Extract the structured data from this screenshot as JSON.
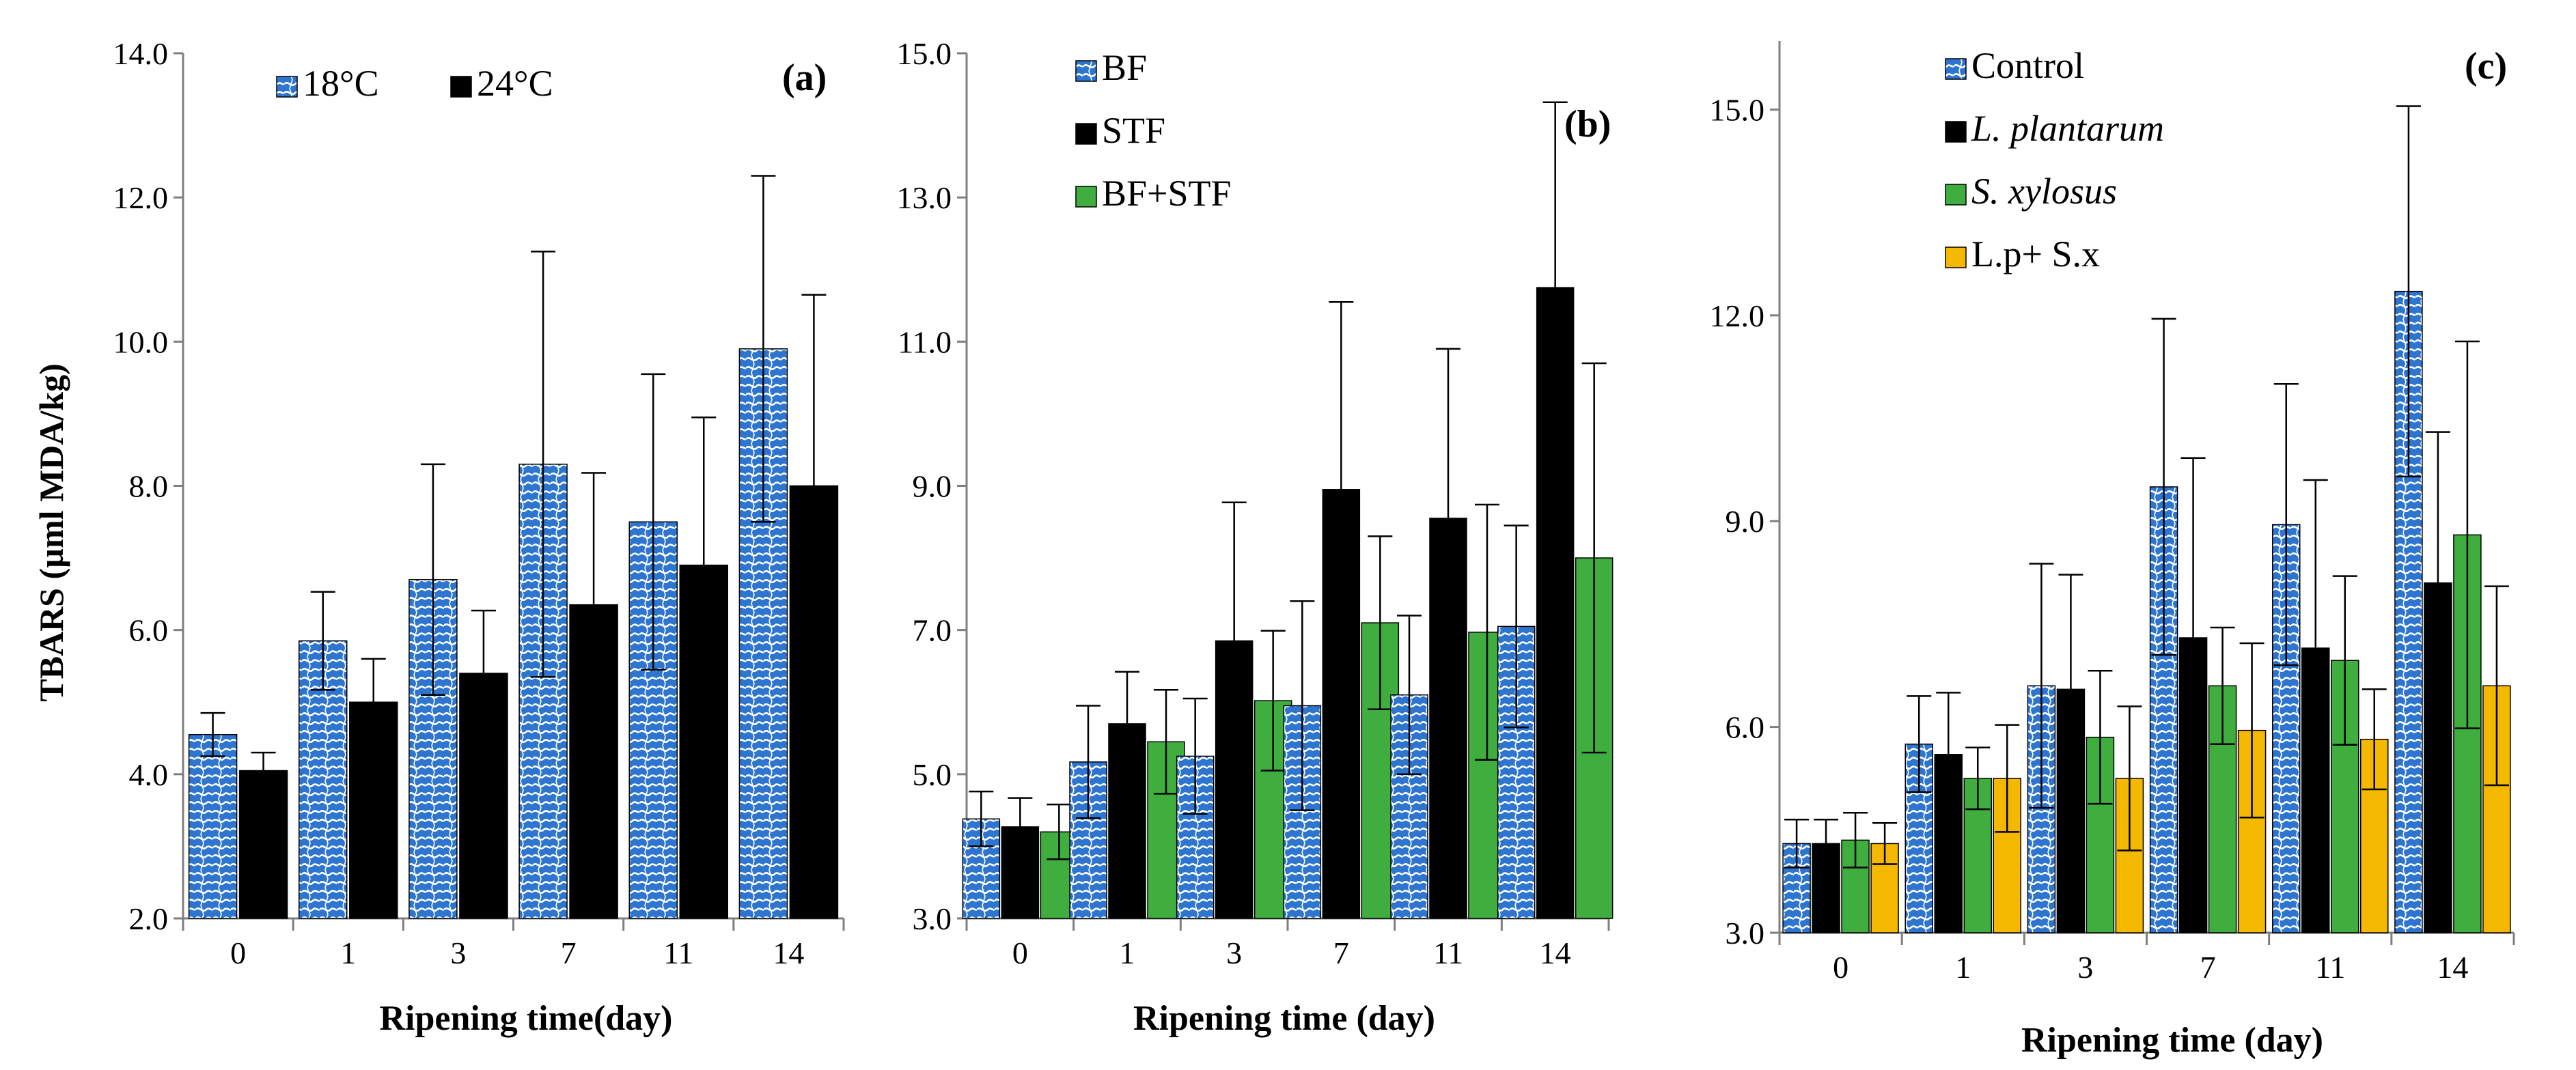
{
  "colors": {
    "blue": "#2E75D0",
    "black": "#000000",
    "green": "#3FAE3F",
    "yellow": "#F5B800",
    "axis": "#7f7f7f"
  },
  "chart_data": [
    {
      "type": "bar",
      "panel_label": "(a)",
      "ylabel": "TBARS (µml MDA/kg)",
      "xlabel": "Ripening time(day)",
      "categories": [
        "0",
        "1",
        "3",
        "7",
        "11",
        "14"
      ],
      "ylim": [
        2.0,
        14.0
      ],
      "yticks": [
        "2.0",
        "4.0",
        "6.0",
        "8.0",
        "10.0",
        "12.0",
        "14.0"
      ],
      "legend_position": "top-left-horizontal",
      "series": [
        {
          "name": "18°C",
          "color": "blue",
          "pattern": true,
          "values": [
            4.55,
            5.85,
            6.7,
            8.3,
            7.5,
            9.9
          ],
          "errors": [
            0.3,
            0.68,
            1.6,
            2.95,
            2.05,
            2.4
          ]
        },
        {
          "name": "24°C",
          "color": "black",
          "pattern": false,
          "values": [
            4.05,
            5.0,
            5.4,
            6.35,
            6.9,
            8.0
          ],
          "errors": [
            0.25,
            0.6,
            0.87,
            1.83,
            2.05,
            2.65
          ]
        }
      ]
    },
    {
      "type": "bar",
      "panel_label": "(b)",
      "ylabel": "",
      "xlabel": "Ripening time (day)",
      "categories": [
        "0",
        "1",
        "3",
        "7",
        "11",
        "14"
      ],
      "ylim": [
        3.0,
        15.0
      ],
      "yticks": [
        "3.0",
        "5.0",
        "7.0",
        "9.0",
        "11.0",
        "13.0",
        "15.0"
      ],
      "legend_position": "top-left-vertical",
      "series": [
        {
          "name": "BF",
          "color": "blue",
          "pattern": true,
          "values": [
            4.38,
            5.17,
            5.25,
            5.95,
            6.1,
            7.05
          ],
          "errors": [
            0.38,
            0.78,
            0.8,
            1.45,
            1.1,
            1.4
          ]
        },
        {
          "name": "STF",
          "color": "black",
          "pattern": false,
          "values": [
            4.27,
            5.7,
            6.85,
            8.95,
            8.55,
            11.75
          ],
          "errors": [
            0.4,
            0.72,
            1.92,
            2.6,
            2.35,
            2.57
          ]
        },
        {
          "name": "BF+STF",
          "color": "green",
          "pattern": false,
          "values": [
            4.2,
            5.45,
            6.02,
            7.1,
            6.97,
            8.0
          ],
          "errors": [
            0.38,
            0.72,
            0.97,
            1.2,
            1.77,
            2.7
          ]
        }
      ]
    },
    {
      "type": "bar",
      "panel_label": "(c)",
      "ylabel": "",
      "xlabel": "Ripening time (day)",
      "categories": [
        "0",
        "1",
        "3",
        "7",
        "11",
        "14"
      ],
      "ylim": [
        3.0,
        16.0
      ],
      "yticks": [
        "3.0",
        "6.0",
        "9.0",
        "12.0",
        "15.0"
      ],
      "legend_position": "top-left-vertical",
      "series": [
        {
          "name": "Control",
          "italic": false,
          "color": "blue",
          "pattern": true,
          "values": [
            4.3,
            5.75,
            6.6,
            9.5,
            8.95,
            12.35
          ],
          "errors": [
            0.35,
            0.7,
            1.78,
            2.45,
            2.05,
            2.7
          ]
        },
        {
          "name": "L. plantarum",
          "italic": true,
          "color": "black",
          "pattern": false,
          "values": [
            4.3,
            5.6,
            6.55,
            7.3,
            7.15,
            8.1
          ],
          "errors": [
            0.35,
            0.9,
            1.67,
            2.62,
            2.45,
            2.2
          ]
        },
        {
          "name": "S. xylosus",
          "italic": true,
          "color": "green",
          "pattern": false,
          "values": [
            4.35,
            5.25,
            5.85,
            6.6,
            6.97,
            8.8
          ],
          "errors": [
            0.4,
            0.45,
            0.97,
            0.85,
            1.23,
            2.82
          ]
        },
        {
          "name": "L.p+ S.x",
          "italic": false,
          "color": "yellow",
          "pattern": false,
          "values": [
            4.3,
            5.25,
            5.25,
            5.95,
            5.82,
            6.6
          ],
          "errors": [
            0.3,
            0.78,
            1.05,
            1.27,
            0.73,
            1.45
          ]
        }
      ]
    }
  ]
}
